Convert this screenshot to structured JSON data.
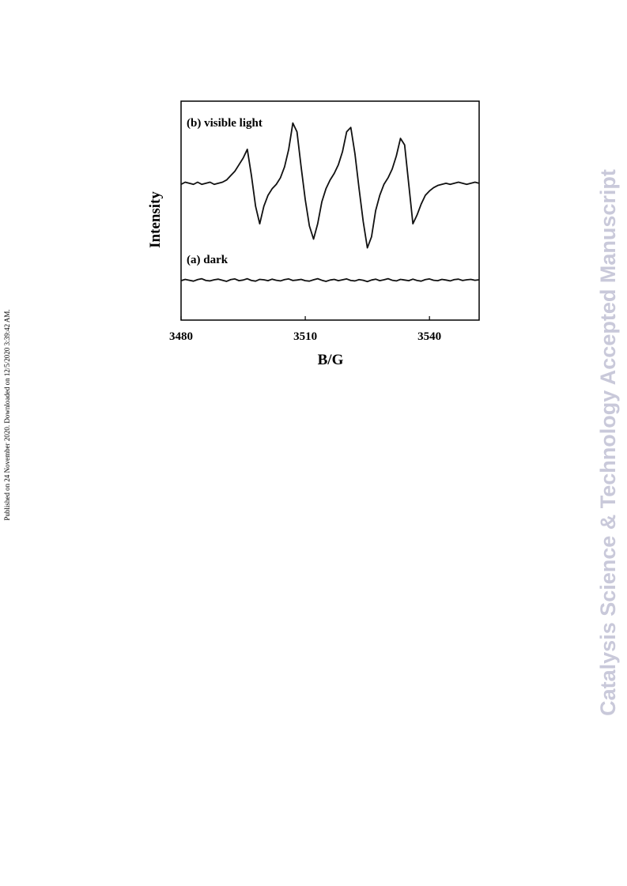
{
  "side_note": "Published on 24 November 2020. Downloaded on 12/5/2020 3:39:42 AM.",
  "watermark": "Catalysis Science & Technology Accepted Manuscript",
  "chart_data": {
    "type": "line",
    "x_label": "B/G",
    "y_label": "Intensity",
    "xlim": [
      3480,
      3552
    ],
    "ylim": [
      0,
      100
    ],
    "xticks": [
      3480,
      3510,
      3540
    ],
    "x": [
      3480,
      3481,
      3482,
      3483,
      3484,
      3485,
      3486,
      3487,
      3488,
      3489,
      3490,
      3491,
      3492,
      3493,
      3494,
      3495,
      3496,
      3497,
      3498,
      3499,
      3500,
      3501,
      3502,
      3503,
      3504,
      3505,
      3506,
      3507,
      3508,
      3509,
      3510,
      3511,
      3512,
      3513,
      3514,
      3515,
      3516,
      3517,
      3518,
      3519,
      3520,
      3521,
      3522,
      3523,
      3524,
      3525,
      3526,
      3527,
      3528,
      3529,
      3530,
      3531,
      3532,
      3533,
      3534,
      3535,
      3536,
      3537,
      3538,
      3539,
      3540,
      3541,
      3542,
      3543,
      3544,
      3545,
      3546,
      3547,
      3548,
      3549,
      3550,
      3551,
      3552
    ],
    "series": [
      {
        "name": "(b) visible light",
        "color": "#111111",
        "values": [
          62,
          63,
          62.5,
          62,
          63,
          62,
          62.5,
          63,
          62,
          62.5,
          63,
          64,
          66,
          68,
          71,
          74,
          78,
          66,
          52,
          44,
          52,
          57,
          60,
          62,
          65,
          70,
          78,
          90,
          86,
          70,
          55,
          43,
          37,
          44,
          54,
          60,
          64,
          67,
          71,
          77,
          86,
          88,
          76,
          60,
          45,
          33,
          38,
          50,
          57,
          62,
          65,
          69,
          75,
          83,
          80,
          62,
          44,
          48,
          53,
          57,
          59,
          60.5,
          61.5,
          62,
          62.5,
          62,
          62.5,
          63,
          62.5,
          62,
          62.5,
          63,
          62.5
        ]
      },
      {
        "name": "(a) dark",
        "color": "#111111",
        "values": [
          18,
          18.6,
          18.2,
          17.8,
          18.5,
          18.9,
          18.1,
          17.9,
          18.4,
          18.7,
          18.2,
          17.7,
          18.5,
          18.8,
          18,
          18.3,
          18.9,
          18.1,
          17.8,
          18.6,
          18.4,
          18,
          18.7,
          18.2,
          17.9,
          18.5,
          18.8,
          18.1,
          18.3,
          18.6,
          18,
          17.8,
          18.4,
          18.9,
          18.2,
          17.7,
          18.3,
          18.6,
          18,
          18.4,
          18.8,
          18.1,
          17.9,
          18.5,
          18.2,
          17.6,
          18.3,
          18.7,
          18,
          18.4,
          18.9,
          18.2,
          17.9,
          18.6,
          18.3,
          18,
          18.7,
          18.1,
          17.8,
          18.5,
          18.8,
          18.2,
          18,
          18.6,
          18.3,
          17.9,
          18.5,
          18.7,
          18.1,
          18.4,
          18.6,
          18.2,
          18.4
        ]
      }
    ]
  }
}
